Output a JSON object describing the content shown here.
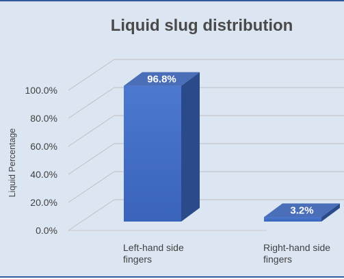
{
  "chart_data": {
    "type": "bar",
    "title": "Liquid slug distribution",
    "ylabel": "Liquid Percentage",
    "xlabel": "",
    "categories": [
      "Left-hand side fingers",
      "Right-hand side fingers"
    ],
    "category_lines": [
      [
        "Left-hand side",
        "fingers"
      ],
      [
        "Right-hand side",
        "fingers"
      ]
    ],
    "values": [
      96.8,
      3.2
    ],
    "data_labels": [
      "96.8%",
      "3.2%"
    ],
    "yticks": [
      "0.0%",
      "20.0%",
      "40.0%",
      "60.0%",
      "80.0%",
      "100.0%"
    ],
    "ylim": [
      0,
      100
    ],
    "grid": true,
    "legend": "none",
    "style": "3d-column",
    "colors": {
      "background": "#dce6f2",
      "frame": "#2f5b9c",
      "bar_front": "#3f6cc6",
      "bar_side": "#2a4a8a",
      "bar_top": "#4a6fb8",
      "grid": "#bfbfbf"
    }
  }
}
